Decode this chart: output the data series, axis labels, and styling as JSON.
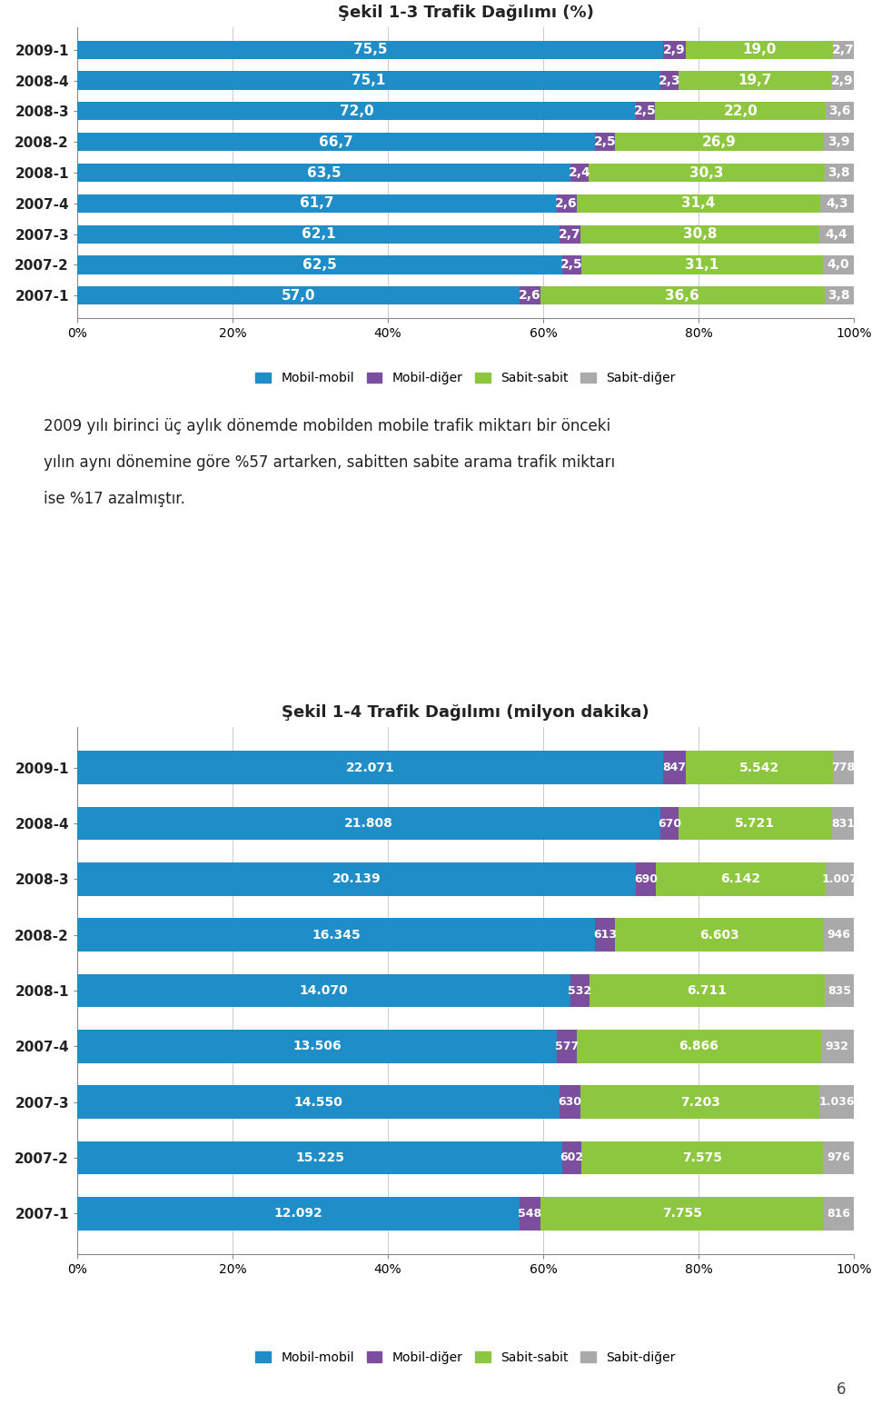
{
  "chart1": {
    "title": "Şekil 1-3 Trafik Dağılımı (%)",
    "categories": [
      "2009-1",
      "2008-4",
      "2008-3",
      "2008-2",
      "2008-1",
      "2007-4",
      "2007-3",
      "2007-2",
      "2007-1"
    ],
    "mobil_mobil": [
      75.5,
      75.1,
      72.0,
      66.7,
      63.5,
      61.7,
      62.1,
      62.5,
      57.0
    ],
    "mobil_diger": [
      2.9,
      2.3,
      2.5,
      2.5,
      2.4,
      2.6,
      2.7,
      2.5,
      2.6
    ],
    "sabit_sabit": [
      19.0,
      19.7,
      22.0,
      26.9,
      30.3,
      31.4,
      30.8,
      31.1,
      36.6
    ],
    "sabit_diger": [
      2.7,
      2.9,
      3.6,
      3.9,
      3.8,
      4.3,
      4.4,
      4.0,
      3.8
    ]
  },
  "chart2": {
    "title": "Şekil 1-4 Trafik Dağılımı (milyon dakika)",
    "categories": [
      "2009-1",
      "2008-4",
      "2008-3",
      "2008-2",
      "2008-1",
      "2007-4",
      "2007-3",
      "2007-2",
      "2007-1"
    ],
    "mobil_mobil": [
      22071,
      21808,
      20139,
      16345,
      14070,
      13506,
      14550,
      15225,
      12092
    ],
    "mobil_diger": [
      847,
      670,
      690,
      613,
      532,
      577,
      630,
      602,
      548
    ],
    "sabit_sabit": [
      5542,
      5721,
      6142,
      6603,
      6711,
      6866,
      7203,
      7575,
      7755
    ],
    "sabit_diger": [
      778,
      831,
      1007,
      946,
      835,
      932,
      1036,
      976,
      816
    ]
  },
  "colors": {
    "mobil_mobil": "#1F8DC8",
    "mobil_diger": "#7B4F9E",
    "sabit_sabit": "#8DC63F",
    "sabit_diger": "#AAAAAA"
  },
  "legend_labels": [
    "Mobil-mobil",
    "Mobil-diğer",
    "Sabit-sabit",
    "Sabit-diğer"
  ],
  "middle_text_line1": "2009 yılı birinci üç aylık dönemde mobilden mobile trafik miktarı bir önceki",
  "middle_text_line2": "yılın aynı dönemine göre %57 artarken, sabitten sabite arama trafik miktarı",
  "middle_text_line3": "ise %17 azalmıştır.",
  "page_number": "6",
  "bg_color": "#FFFFFF"
}
